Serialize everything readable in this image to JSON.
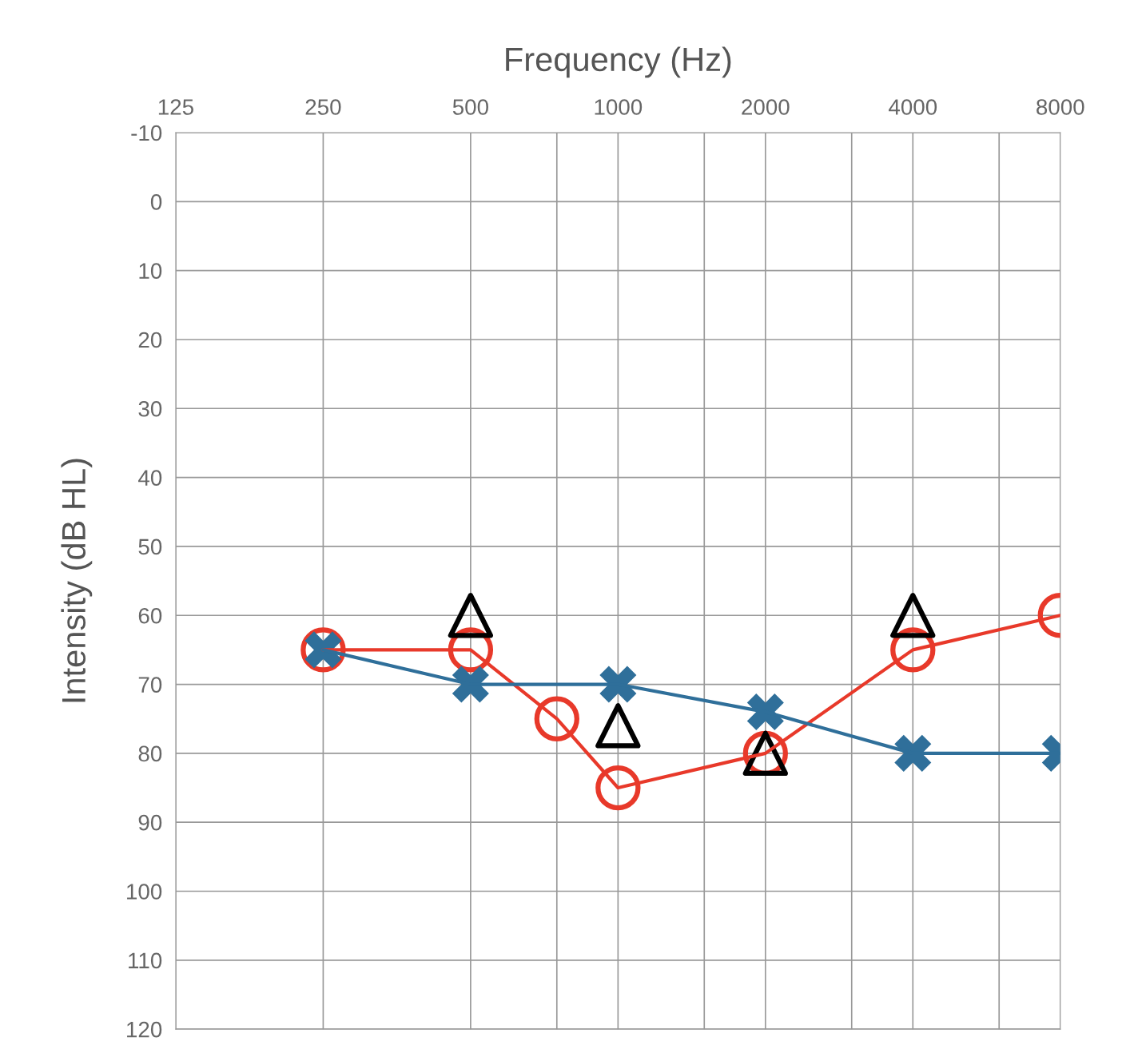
{
  "chart_data": {
    "type": "line",
    "xlabel": "Frequency (Hz)",
    "ylabel": "Intensity (dB HL)",
    "log": "x",
    "xlim": [
      125,
      8000
    ],
    "xticks": [
      125,
      250,
      500,
      {
        "value": 750,
        "label": null
      },
      1000,
      {
        "value": 1500,
        "label": null
      },
      2000,
      {
        "value": 3000,
        "label": null
      },
      4000,
      {
        "value": 6000,
        "label": null
      },
      8000
    ],
    "ylim": [
      120,
      -10
    ],
    "yticks": [
      -10,
      0,
      10,
      20,
      30,
      40,
      50,
      60,
      70,
      80,
      90,
      100,
      110,
      120
    ],
    "grid": true,
    "series": [
      {
        "marker": "circle",
        "color": "#e8392a",
        "x": [
          250,
          500,
          750,
          1000,
          2000,
          4000,
          8000
        ],
        "values": [
          65,
          65,
          75,
          85,
          80,
          65,
          60
        ]
      },
      {
        "marker": "cross",
        "color": "#2f6f9a",
        "x": [
          250,
          500,
          1000,
          2000,
          4000,
          8000
        ],
        "values": [
          65,
          70,
          70,
          74,
          80,
          80
        ]
      },
      {
        "type": "scatter",
        "marker": "triangle",
        "color": "#000000",
        "x": [
          500,
          1000,
          2000,
          4000
        ],
        "values": [
          60,
          76,
          80,
          60
        ]
      }
    ]
  }
}
